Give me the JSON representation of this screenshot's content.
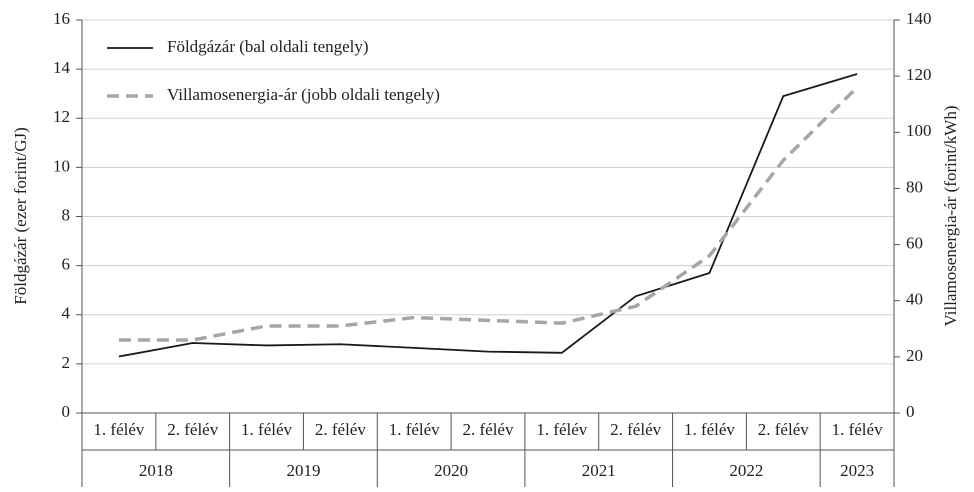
{
  "chart_data": {
    "type": "line",
    "y_label": "Földgázár (ezer forint/GJ)",
    "y2_label": "Villamosenergia-ár (forint/kWh)",
    "categories": [
      "1. félév",
      "2. félév",
      "1. félév",
      "2. félév",
      "1. félév",
      "2. félév",
      "1. félév",
      "2. félév",
      "1. félév",
      "2. félév",
      "1. félév"
    ],
    "category_groups": [
      "2018",
      "2018",
      "2019",
      "2019",
      "2020",
      "2020",
      "2021",
      "2021",
      "2022",
      "2022",
      "2023"
    ],
    "series": [
      {
        "name": "Földgázár (bal oldali tengely)",
        "color": "#1a1a1a",
        "dash": false,
        "values": [
          2.3,
          2.85,
          2.75,
          2.8,
          2.65,
          2.5,
          2.45,
          4.75,
          5.7,
          12.9,
          13.8
        ]
      },
      {
        "name": "Villamosenergia-ár (jobb oldali tengely)",
        "color": "#a6a6a6",
        "dash": true,
        "axis": "y2",
        "values": [
          26,
          26,
          31,
          31,
          34,
          33,
          32,
          38,
          56,
          90,
          116
        ]
      }
    ],
    "ylim": [
      0,
      16
    ],
    "yticks": [
      0,
      2,
      4,
      6,
      8,
      10,
      12,
      14,
      16
    ],
    "y2lim": [
      0,
      140
    ],
    "y2ticks": [
      0,
      20,
      40,
      60,
      80,
      100,
      120,
      140
    ],
    "grid": true,
    "legend": "top-left"
  }
}
